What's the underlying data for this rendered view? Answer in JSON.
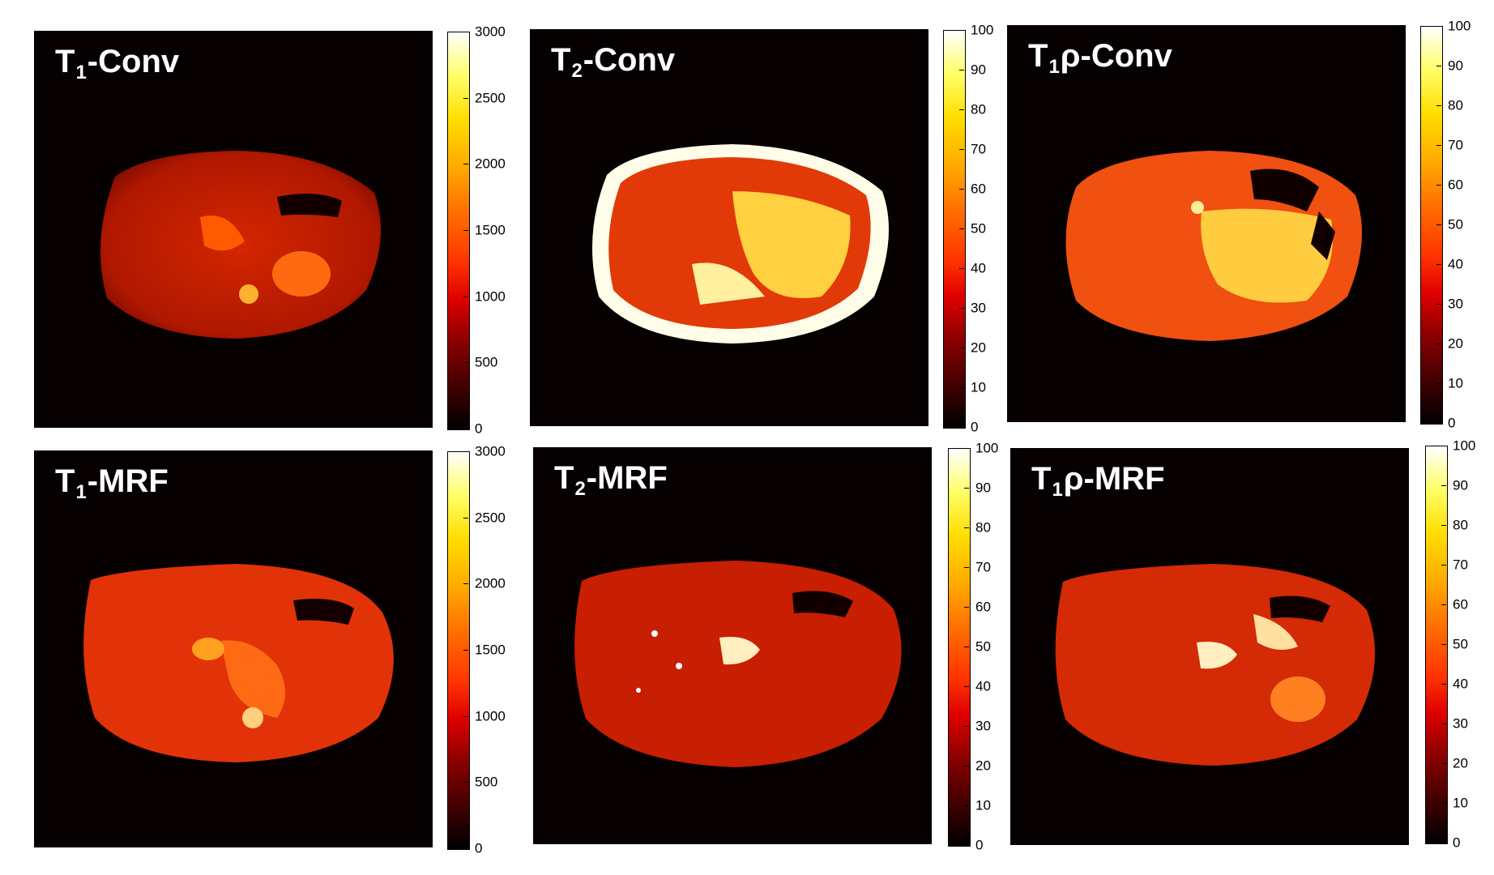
{
  "panels": [
    {
      "title_base": "T",
      "title_sub": "1",
      "title_rest": "-Conv"
    },
    {
      "title_base": "T",
      "title_sub": "2",
      "title_rest": "-Conv"
    },
    {
      "title_base": "T",
      "title_sub": "1",
      "title_rest": "ρ-Conv"
    },
    {
      "title_base": "T",
      "title_sub": "1",
      "title_rest": "-MRF"
    },
    {
      "title_base": "T",
      "title_sub": "2",
      "title_rest": "-MRF"
    },
    {
      "title_base": "T",
      "title_sub": "1",
      "title_rest": "ρ-MRF"
    }
  ],
  "colorbars": [
    {
      "ticks": [
        "3000",
        "2500",
        "2000",
        "1500",
        "1000",
        "500",
        "0"
      ]
    },
    {
      "ticks": [
        "100",
        "90",
        "80",
        "70",
        "60",
        "50",
        "40",
        "30",
        "20",
        "10",
        "0"
      ]
    },
    {
      "ticks": [
        "100",
        "90",
        "80",
        "70",
        "60",
        "50",
        "40",
        "30",
        "20",
        "10",
        "0"
      ]
    },
    {
      "ticks": [
        "3000",
        "2500",
        "2000",
        "1500",
        "1000",
        "500",
        "0"
      ]
    },
    {
      "ticks": [
        "100",
        "90",
        "80",
        "70",
        "60",
        "50",
        "40",
        "30",
        "20",
        "10",
        "0"
      ]
    },
    {
      "ticks": [
        "100",
        "90",
        "80",
        "70",
        "60",
        "50",
        "40",
        "30",
        "20",
        "10",
        "0"
      ]
    }
  ],
  "colors": {
    "background": "#070000",
    "colormap": "hot"
  }
}
